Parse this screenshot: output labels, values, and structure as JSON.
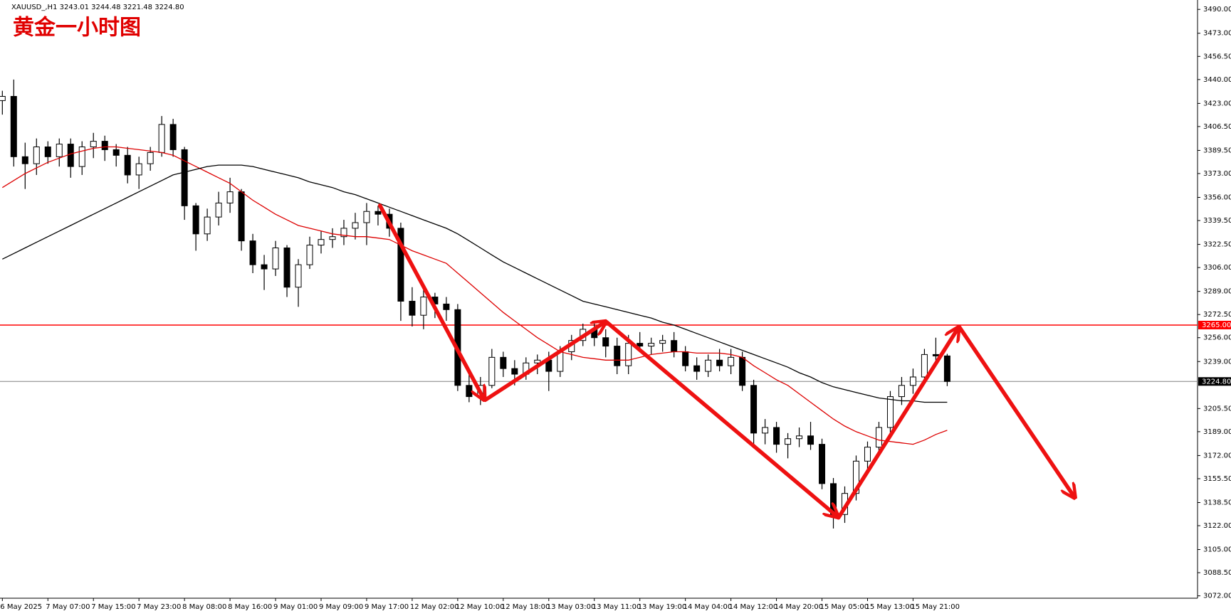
{
  "chart_data": {
    "type": "candlestick",
    "symbol_info": "XAUUSD_,H1  3243.01 3244.48 3221.48 3224.80",
    "title": "黄金一小时图",
    "categories": [
      "6 May 2025",
      null,
      null,
      null,
      "7 May 07:00",
      null,
      null,
      null,
      "7 May 15:00",
      null,
      null,
      null,
      "7 May 23:00",
      null,
      null,
      null,
      "8 May 08:00",
      null,
      null,
      null,
      "8 May 16:00",
      null,
      null,
      null,
      "9 May 01:00",
      null,
      null,
      null,
      "9 May 09:00",
      null,
      null,
      null,
      "9 May 17:00",
      null,
      null,
      null,
      "12 May 02:00",
      null,
      null,
      null,
      "12 May 10:00",
      null,
      null,
      null,
      "12 May 18:00",
      null,
      null,
      null,
      "13 May 03:00",
      null,
      null,
      null,
      "13 May 11:00",
      null,
      null,
      null,
      "13 May 19:00",
      null,
      null,
      null,
      "14 May 04:00",
      null,
      null,
      null,
      "14 May 12:00",
      null,
      null,
      null,
      "14 May 20:00",
      null,
      null,
      null,
      "15 May 05:00",
      null,
      null,
      null,
      "15 May 13:00",
      null,
      null,
      null,
      "15 May 21:00",
      null,
      null,
      null
    ],
    "candles": {
      "open": [
        3425,
        3428,
        3385,
        3380,
        3392,
        3385,
        3394,
        3378,
        3392,
        3396,
        3390,
        3386,
        3372,
        3380,
        3388,
        3408,
        3390,
        3350,
        3330,
        3342,
        3352,
        3360,
        3325,
        3308,
        3305,
        3320,
        3292,
        3308,
        3322,
        3326,
        3328,
        3334,
        3338,
        3346,
        3344,
        3334,
        3282,
        3272,
        3285,
        3280,
        3276,
        3222,
        3214,
        3222,
        3242,
        3234,
        3230,
        3238,
        3240,
        3232,
        3246,
        3254,
        3262,
        3256,
        3250,
        3236,
        3252,
        3250,
        3252,
        3254,
        3246,
        3236,
        3232,
        3240,
        3236,
        3242,
        3222,
        3188,
        3192,
        3180,
        3184,
        3186,
        3180,
        3152,
        3130,
        3145,
        3168,
        3178,
        3192,
        3214,
        3222,
        3228,
        3244,
        3243.01
      ],
      "high": [
        3432,
        3440,
        3395,
        3398,
        3396,
        3398,
        3398,
        3396,
        3402,
        3400,
        3394,
        3392,
        3385,
        3392,
        3414,
        3412,
        3392,
        3352,
        3348,
        3360,
        3370,
        3362,
        3330,
        3315,
        3325,
        3322,
        3312,
        3328,
        3332,
        3334,
        3340,
        3345,
        3352,
        3350,
        3348,
        3338,
        3292,
        3290,
        3288,
        3285,
        3280,
        3230,
        3228,
        3248,
        3246,
        3240,
        3242,
        3244,
        3246,
        3250,
        3258,
        3266,
        3266,
        3262,
        3256,
        3258,
        3260,
        3256,
        3258,
        3260,
        3250,
        3242,
        3244,
        3248,
        3248,
        3246,
        3226,
        3198,
        3196,
        3188,
        3192,
        3196,
        3184,
        3156,
        3150,
        3172,
        3182,
        3196,
        3218,
        3228,
        3234,
        3248,
        3256,
        3244.48
      ],
      "low": [
        3415,
        3378,
        3362,
        3372,
        3380,
        3378,
        3370,
        3372,
        3384,
        3382,
        3378,
        3366,
        3362,
        3375,
        3385,
        3385,
        3340,
        3318,
        3325,
        3336,
        3345,
        3318,
        3302,
        3290,
        3300,
        3285,
        3278,
        3305,
        3316,
        3320,
        3322,
        3326,
        3322,
        3336,
        3328,
        3268,
        3264,
        3262,
        3270,
        3268,
        3218,
        3210,
        3208,
        3220,
        3228,
        3222,
        3226,
        3230,
        3218,
        3228,
        3240,
        3250,
        3250,
        3242,
        3230,
        3230,
        3246,
        3244,
        3246,
        3242,
        3232,
        3226,
        3228,
        3232,
        3230,
        3218,
        3180,
        3180,
        3174,
        3170,
        3178,
        3176,
        3148,
        3120,
        3124,
        3140,
        3162,
        3172,
        3188,
        3208,
        3216,
        3224,
        3238,
        3221.48
      ],
      "close": [
        3428,
        3385,
        3380,
        3392,
        3385,
        3394,
        3378,
        3392,
        3396,
        3390,
        3386,
        3372,
        3380,
        3388,
        3408,
        3390,
        3350,
        3330,
        3342,
        3352,
        3360,
        3325,
        3308,
        3305,
        3320,
        3292,
        3308,
        3322,
        3326,
        3328,
        3334,
        3338,
        3346,
        3344,
        3334,
        3282,
        3272,
        3285,
        3280,
        3276,
        3222,
        3214,
        3222,
        3242,
        3234,
        3230,
        3238,
        3240,
        3232,
        3246,
        3254,
        3262,
        3256,
        3250,
        3236,
        3252,
        3250,
        3252,
        3254,
        3246,
        3236,
        3232,
        3240,
        3236,
        3242,
        3222,
        3188,
        3192,
        3180,
        3184,
        3186,
        3180,
        3152,
        3130,
        3145,
        3168,
        3178,
        3192,
        3214,
        3222,
        3228,
        3244,
        3243.01,
        3224.8
      ]
    },
    "up_color": "#ffffff",
    "down_color": "#000000",
    "moving_averages": [
      {
        "color": "#dd0000",
        "values": [
          3363,
          3368,
          3373,
          3377,
          3381,
          3384,
          3387,
          3389,
          3391,
          3392,
          3392,
          3391,
          3390,
          3389,
          3388,
          3386,
          3382,
          3378,
          3374,
          3370,
          3366,
          3360,
          3354,
          3349,
          3344,
          3340,
          3336,
          3334,
          3332,
          3330,
          3329,
          3328,
          3328,
          3327,
          3326,
          3322,
          3318,
          3315,
          3312,
          3309,
          3302,
          3295,
          3288,
          3281,
          3274,
          3268,
          3262,
          3256,
          3251,
          3246,
          3244,
          3242,
          3241,
          3240,
          3240,
          3240,
          3242,
          3244,
          3245,
          3246,
          3246,
          3245,
          3245,
          3245,
          3244,
          3242,
          3236,
          3231,
          3226,
          3222,
          3216,
          3210,
          3204,
          3198,
          3193,
          3189,
          3186,
          3183,
          3182,
          3181,
          3180,
          3183,
          3187,
          3190
        ]
      },
      {
        "color": "#000000",
        "values": [
          3312,
          3316,
          3320,
          3324,
          3328,
          3332,
          3336,
          3340,
          3344,
          3348,
          3352,
          3356,
          3360,
          3364,
          3368,
          3372,
          3374,
          3376,
          3378,
          3379,
          3379,
          3379,
          3378,
          3376,
          3374,
          3372,
          3370,
          3367,
          3365,
          3363,
          3360,
          3358,
          3355,
          3352,
          3349,
          3346,
          3343,
          3340,
          3337,
          3334,
          3330,
          3325,
          3320,
          3315,
          3310,
          3306,
          3302,
          3298,
          3294,
          3290,
          3286,
          3282,
          3280,
          3278,
          3276,
          3274,
          3272,
          3270,
          3267,
          3265,
          3262,
          3259,
          3256,
          3253,
          3250,
          3247,
          3244,
          3241,
          3238,
          3235,
          3231,
          3228,
          3224,
          3221,
          3219,
          3217,
          3215,
          3213,
          3212,
          3211,
          3211,
          3210,
          3210,
          3210
        ]
      }
    ],
    "hlines": [
      {
        "value": 3265,
        "label": "3265.00",
        "color": "#ff0000"
      },
      {
        "value": 3224.8,
        "label": "3224.80",
        "color": "#808080"
      }
    ],
    "ylim": [
      3070.3,
      3496.7
    ],
    "yticks": [
      {
        "value": 3490,
        "label": "3490.00"
      },
      {
        "value": 3473,
        "label": "3473.00"
      },
      {
        "value": 3456.5,
        "label": "3456.50"
      },
      {
        "value": 3440,
        "label": "3440.00"
      },
      {
        "value": 3423,
        "label": "3423.00"
      },
      {
        "value": 3406.5,
        "label": "3406.50"
      },
      {
        "value": 3389.5,
        "label": "3389.50"
      },
      {
        "value": 3373,
        "label": "3373.00"
      },
      {
        "value": 3356,
        "label": "3356.00"
      },
      {
        "value": 3339.5,
        "label": "3339.50"
      },
      {
        "value": 3322.5,
        "label": "3322.50"
      },
      {
        "value": 3306,
        "label": "3306.00"
      },
      {
        "value": 3289,
        "label": "3289.00"
      },
      {
        "value": 3272.5,
        "label": "3272.50"
      },
      {
        "value": 3256,
        "label": "3256.00"
      },
      {
        "value": 3239,
        "label": "3239.00"
      },
      {
        "value": 3205.5,
        "label": "3205.50"
      },
      {
        "value": 3189,
        "label": "3189.00"
      },
      {
        "value": 3172,
        "label": "3172.00"
      },
      {
        "value": 3155.5,
        "label": "3155.50"
      },
      {
        "value": 3138.5,
        "label": "3138.50"
      },
      {
        "value": 3122,
        "label": "3122.00"
      },
      {
        "value": 3105,
        "label": "3105.00"
      },
      {
        "value": 3088.5,
        "label": "3088.50"
      },
      {
        "value": 3072,
        "label": "3072.00"
      }
    ]
  }
}
